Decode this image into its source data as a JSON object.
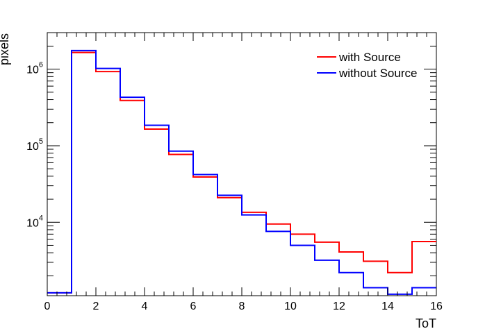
{
  "chart_data": {
    "type": "histogram",
    "xlabel": "ToT",
    "ylabel": "pixels",
    "xlim": [
      0,
      16
    ],
    "ylim": [
      1100,
      3000000
    ],
    "yscale": "log",
    "grid": false,
    "legend_position": "top-right",
    "x_ticks": [
      "0",
      "2",
      "4",
      "6",
      "8",
      "10",
      "12",
      "14",
      "16"
    ],
    "y_ticks": [
      {
        "base": "10",
        "exp": "4",
        "value": 10000
      },
      {
        "base": "10",
        "exp": "5",
        "value": 100000
      },
      {
        "base": "10",
        "exp": "6",
        "value": 1000000
      }
    ],
    "bin_edges": [
      0,
      1,
      2,
      3,
      4,
      5,
      6,
      7,
      8,
      9,
      10,
      11,
      12,
      13,
      14,
      15,
      16
    ],
    "series": [
      {
        "name": "with Source",
        "color": "#ff0000",
        "values": [
          1200,
          1650000,
          930000,
          390000,
          165000,
          77000,
          39000,
          21000,
          13500,
          9500,
          7000,
          5500,
          4100,
          3100,
          2200,
          5600
        ]
      },
      {
        "name": "without Source",
        "color": "#0000ff",
        "values": [
          1200,
          1750000,
          1020000,
          430000,
          185000,
          85000,
          42000,
          22500,
          12500,
          7600,
          5000,
          3200,
          2200,
          1400,
          1150,
          1400
        ]
      }
    ]
  }
}
